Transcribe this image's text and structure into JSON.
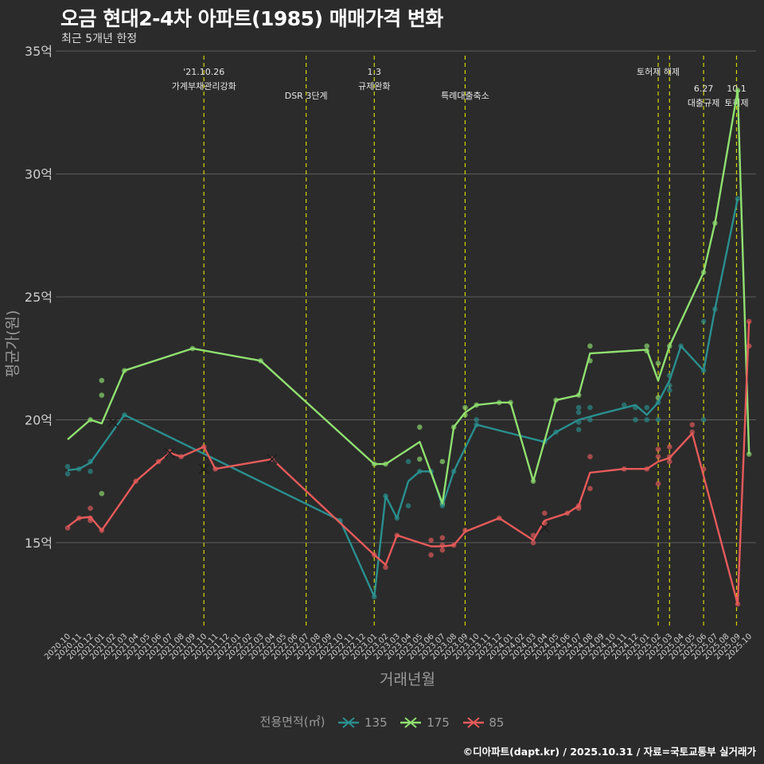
{
  "title": "오금 현대2-4차 아파트(1985) 매매가격 변화",
  "subtitle": "최근 5개년 한정",
  "caption": "©디아파트(dapt.kr) / 2025.10.31 / 자료=국토교통부 실거래가",
  "chart_data": {
    "type": "line",
    "xlabel": "거래년월",
    "ylabel": "평균가(원)",
    "ylim": [
      11.5,
      35.2
    ],
    "y_ticks": [
      15,
      20,
      25,
      30,
      35
    ],
    "y_tick_labels": [
      "15억",
      "20억",
      "25억",
      "30억",
      "35억"
    ],
    "categories": [
      "2020.10",
      "2020.11",
      "2020.12",
      "2021.01",
      "2021.02",
      "2021.03",
      "2021.04",
      "2021.05",
      "2021.06",
      "2021.07",
      "2021.08",
      "2021.09",
      "2021.10",
      "2021.11",
      "2021.12",
      "2022.01",
      "2022.02",
      "2022.03",
      "2022.04",
      "2022.05",
      "2022.06",
      "2022.07",
      "2022.08",
      "2022.09",
      "2022.10",
      "2022.11",
      "2022.12",
      "2023.01",
      "2023.02",
      "2023.03",
      "2023.04",
      "2023.05",
      "2023.06",
      "2023.07",
      "2023.08",
      "2023.09",
      "2023.10",
      "2023.11",
      "2023.12",
      "2024.01",
      "2024.02",
      "2024.03",
      "2024.04",
      "2024.05",
      "2024.06",
      "2024.07",
      "2024.08",
      "2024.09",
      "2024.10",
      "2024.11",
      "2024.12",
      "2025.01",
      "2025.02",
      "2025.03",
      "2025.04",
      "2025.05",
      "2025.06",
      "2025.07",
      "2025.08",
      "2025.09",
      "2025.10"
    ],
    "tick_labels": [
      "2020.10",
      "2020.11",
      "2020.12",
      "2021.01",
      "2021.02",
      "2021.03",
      "2021.04",
      "2021.05",
      "2021.06",
      "2021.07",
      "2021.08",
      "2021.09",
      "2021.10",
      "2021.11",
      "2021.12",
      "2022.01",
      "2022.02",
      "2022.03",
      "2022.04",
      "2022.05",
      "2022.06",
      "2022.07",
      "2022.08",
      "2022.09",
      "2022.10",
      "2022.11",
      "2022.12",
      "2023.01",
      "2023.02",
      "2023.03",
      "2023.04",
      "2023.05",
      "2023.06",
      "2023.07",
      "2023.08",
      "2023.09",
      "2023.10",
      "2023.11",
      "2023.12",
      "2024.01",
      "2024.02",
      "2024.03",
      "2024.04",
      "2024.05",
      "2024.06",
      "2024.07",
      "2024.08",
      "2024.09",
      "2024.10",
      "2024.11",
      "2024.12",
      "2025.01",
      "2025.02",
      "2025.03",
      "2025.04",
      "2025.05",
      "2025.06",
      "2025.07",
      "2025.08",
      "2025.09",
      "2025.10"
    ],
    "events": [
      {
        "label": "'21.10.26",
        "label2": "가계부채관리강화",
        "x": 12.0,
        "row": 0
      },
      {
        "label": "DSR 3단계",
        "label2": "",
        "x": 21.0,
        "row": 1
      },
      {
        "label": "1.3",
        "label2": "규제완화",
        "x": 27.0,
        "row": 0
      },
      {
        "label": "특례대출축소",
        "label2": "",
        "x": 35.0,
        "row": 1
      },
      {
        "label": "토허제 해제",
        "label2": "",
        "x": 52.0,
        "row": 0
      },
      {
        "label": "",
        "label2": "",
        "x": 53.0,
        "row": 0
      },
      {
        "label": "6.27",
        "label2": "대출규제",
        "x": 56.0,
        "row": 2
      },
      {
        "label": "10.1",
        "label2": "토허제",
        "x": 58.9,
        "row": 2
      }
    ],
    "legend_title": "전용면적(㎡)",
    "series": [
      {
        "name": "135",
        "color": "#2a8f8f",
        "line": [
          [
            0,
            17.95
          ],
          [
            1,
            18.0
          ],
          [
            2,
            18.25
          ],
          [
            5,
            20.2
          ],
          [
            24,
            15.9
          ],
          [
            27,
            12.8
          ],
          [
            28,
            16.9
          ],
          [
            29,
            16.0
          ],
          [
            30,
            17.5
          ],
          [
            31,
            17.9
          ],
          [
            32,
            17.9
          ],
          [
            33,
            16.5
          ],
          [
            34,
            17.9
          ],
          [
            36,
            19.8
          ],
          [
            42,
            19.1
          ],
          [
            43,
            19.5
          ],
          [
            45,
            20.0
          ],
          [
            47,
            20.25
          ],
          [
            50,
            20.6
          ],
          [
            51,
            20.2
          ],
          [
            52,
            20.7
          ],
          [
            53,
            21.6
          ],
          [
            54,
            23.0
          ],
          [
            56,
            22.0
          ],
          [
            57,
            24.5
          ],
          [
            59,
            29.0
          ]
        ],
        "points": [
          [
            0,
            18.1
          ],
          [
            0,
            17.8
          ],
          [
            1,
            18.0
          ],
          [
            2,
            18.3
          ],
          [
            2,
            17.9
          ],
          [
            5,
            20.2
          ],
          [
            24,
            15.9
          ],
          [
            27,
            12.8
          ],
          [
            28,
            16.9
          ],
          [
            29,
            16.0
          ],
          [
            30,
            18.3
          ],
          [
            30,
            16.5
          ],
          [
            31,
            17.9
          ],
          [
            32,
            17.9
          ],
          [
            33,
            16.5
          ],
          [
            34,
            17.9
          ],
          [
            36,
            20.0
          ],
          [
            36,
            19.8
          ],
          [
            42,
            19.1
          ],
          [
            43,
            19.5
          ],
          [
            45,
            20.5
          ],
          [
            45,
            20.3
          ],
          [
            45,
            19.9
          ],
          [
            45,
            19.6
          ],
          [
            46,
            20.5
          ],
          [
            46,
            20.0
          ],
          [
            49,
            20.6
          ],
          [
            50,
            20.5
          ],
          [
            50,
            20.0
          ],
          [
            51,
            20.5
          ],
          [
            51,
            20.0
          ],
          [
            52,
            20.7
          ],
          [
            52,
            20.0
          ],
          [
            53,
            21.8
          ],
          [
            53,
            21.4
          ],
          [
            53,
            21.2
          ],
          [
            54,
            23.0
          ],
          [
            56,
            24.0
          ],
          [
            56,
            22.0
          ],
          [
            56,
            20.0
          ],
          [
            57,
            24.5
          ],
          [
            59,
            29.0
          ]
        ],
        "x_marks": [
          [
            4,
            19.9
          ]
        ]
      },
      {
        "name": "175",
        "color": "#90e070",
        "line": [
          [
            0,
            19.2
          ],
          [
            2,
            20.0
          ],
          [
            3,
            19.85
          ],
          [
            5,
            22.0
          ],
          [
            11,
            22.9
          ],
          [
            17,
            22.4
          ],
          [
            27,
            18.2
          ],
          [
            28,
            18.2
          ],
          [
            31,
            19.1
          ],
          [
            33,
            16.6
          ],
          [
            34,
            19.7
          ],
          [
            35,
            20.3
          ],
          [
            36,
            20.6
          ],
          [
            38,
            20.7
          ],
          [
            39,
            20.7
          ],
          [
            41,
            17.5
          ],
          [
            43,
            20.8
          ],
          [
            45,
            21.0
          ],
          [
            46,
            22.7
          ],
          [
            51,
            22.85
          ],
          [
            52,
            21.6
          ],
          [
            53,
            23.0
          ],
          [
            56,
            26.0
          ],
          [
            57,
            28.0
          ],
          [
            59,
            33.4
          ],
          [
            60,
            18.6
          ]
        ],
        "points": [
          [
            2,
            20.0
          ],
          [
            3,
            21.6
          ],
          [
            3,
            21.0
          ],
          [
            3,
            17.0
          ],
          [
            5,
            22.0
          ],
          [
            11,
            22.9
          ],
          [
            17,
            22.4
          ],
          [
            27,
            18.2
          ],
          [
            28,
            18.2
          ],
          [
            31,
            19.7
          ],
          [
            31,
            18.4
          ],
          [
            33,
            18.3
          ],
          [
            33,
            16.6
          ],
          [
            34,
            19.7
          ],
          [
            35,
            20.5
          ],
          [
            35,
            20.2
          ],
          [
            36,
            20.6
          ],
          [
            38,
            20.7
          ],
          [
            39,
            20.7
          ],
          [
            41,
            17.5
          ],
          [
            43,
            20.8
          ],
          [
            45,
            21.0
          ],
          [
            46,
            23.0
          ],
          [
            46,
            22.4
          ],
          [
            51,
            23.0
          ],
          [
            51,
            22.8
          ],
          [
            52,
            22.3
          ],
          [
            52,
            20.9
          ],
          [
            53,
            23.0
          ],
          [
            56,
            26.0
          ],
          [
            57,
            28.0
          ],
          [
            59,
            33.4
          ],
          [
            60,
            18.6
          ]
        ],
        "x_marks": []
      },
      {
        "name": "85",
        "color": "#e85a5a",
        "line": [
          [
            0,
            15.65
          ],
          [
            1,
            16.0
          ],
          [
            2,
            16.05
          ],
          [
            3,
            15.5
          ],
          [
            6,
            17.5
          ],
          [
            8,
            18.3
          ],
          [
            9,
            18.65
          ],
          [
            10,
            18.5
          ],
          [
            12,
            18.9
          ],
          [
            13,
            18.0
          ],
          [
            18,
            18.4
          ],
          [
            27,
            14.5
          ],
          [
            28,
            14.1
          ],
          [
            29,
            15.3
          ],
          [
            32,
            14.85
          ],
          [
            33,
            14.85
          ],
          [
            34,
            14.9
          ],
          [
            35,
            15.45
          ],
          [
            38,
            16.0
          ],
          [
            41,
            15.1
          ],
          [
            42,
            15.9
          ],
          [
            44,
            16.2
          ],
          [
            45,
            16.5
          ],
          [
            46,
            17.85
          ],
          [
            49,
            18.0
          ],
          [
            51,
            18.0
          ],
          [
            52,
            18.3
          ],
          [
            53,
            18.45
          ],
          [
            55,
            19.45
          ],
          [
            59,
            12.5
          ],
          [
            60,
            24.0
          ]
        ],
        "points": [
          [
            0,
            15.6
          ],
          [
            1,
            16.0
          ],
          [
            2,
            16.4
          ],
          [
            2,
            16.0
          ],
          [
            2,
            15.9
          ],
          [
            3,
            15.5
          ],
          [
            6,
            17.5
          ],
          [
            8,
            18.3
          ],
          [
            9,
            18.7
          ],
          [
            10,
            18.5
          ],
          [
            12,
            18.9
          ],
          [
            13,
            18.0
          ],
          [
            18,
            18.4
          ],
          [
            27,
            14.5
          ],
          [
            28,
            14.0
          ],
          [
            29,
            15.3
          ],
          [
            32,
            15.1
          ],
          [
            32,
            14.5
          ],
          [
            33,
            15.2
          ],
          [
            33,
            14.9
          ],
          [
            33,
            14.7
          ],
          [
            34,
            14.9
          ],
          [
            35,
            15.5
          ],
          [
            38,
            16.0
          ],
          [
            41,
            15.3
          ],
          [
            41,
            15.0
          ],
          [
            42,
            16.2
          ],
          [
            42,
            15.8
          ],
          [
            44,
            16.2
          ],
          [
            45,
            16.5
          ],
          [
            45,
            16.4
          ],
          [
            46,
            18.5
          ],
          [
            46,
            17.2
          ],
          [
            49,
            18.0
          ],
          [
            51,
            18.0
          ],
          [
            52,
            18.8
          ],
          [
            52,
            18.5
          ],
          [
            52,
            17.4
          ],
          [
            53,
            18.9
          ],
          [
            53,
            18.5
          ],
          [
            53,
            18.3
          ],
          [
            55,
            19.8
          ],
          [
            55,
            19.5
          ],
          [
            56,
            18.0
          ],
          [
            59,
            12.5
          ],
          [
            60,
            24.0
          ],
          [
            60,
            23.0
          ]
        ],
        "x_marks": [
          [
            9,
            18.65
          ],
          [
            12,
            18.0
          ],
          [
            18,
            18.4
          ],
          [
            42,
            15.6
          ]
        ]
      }
    ]
  }
}
